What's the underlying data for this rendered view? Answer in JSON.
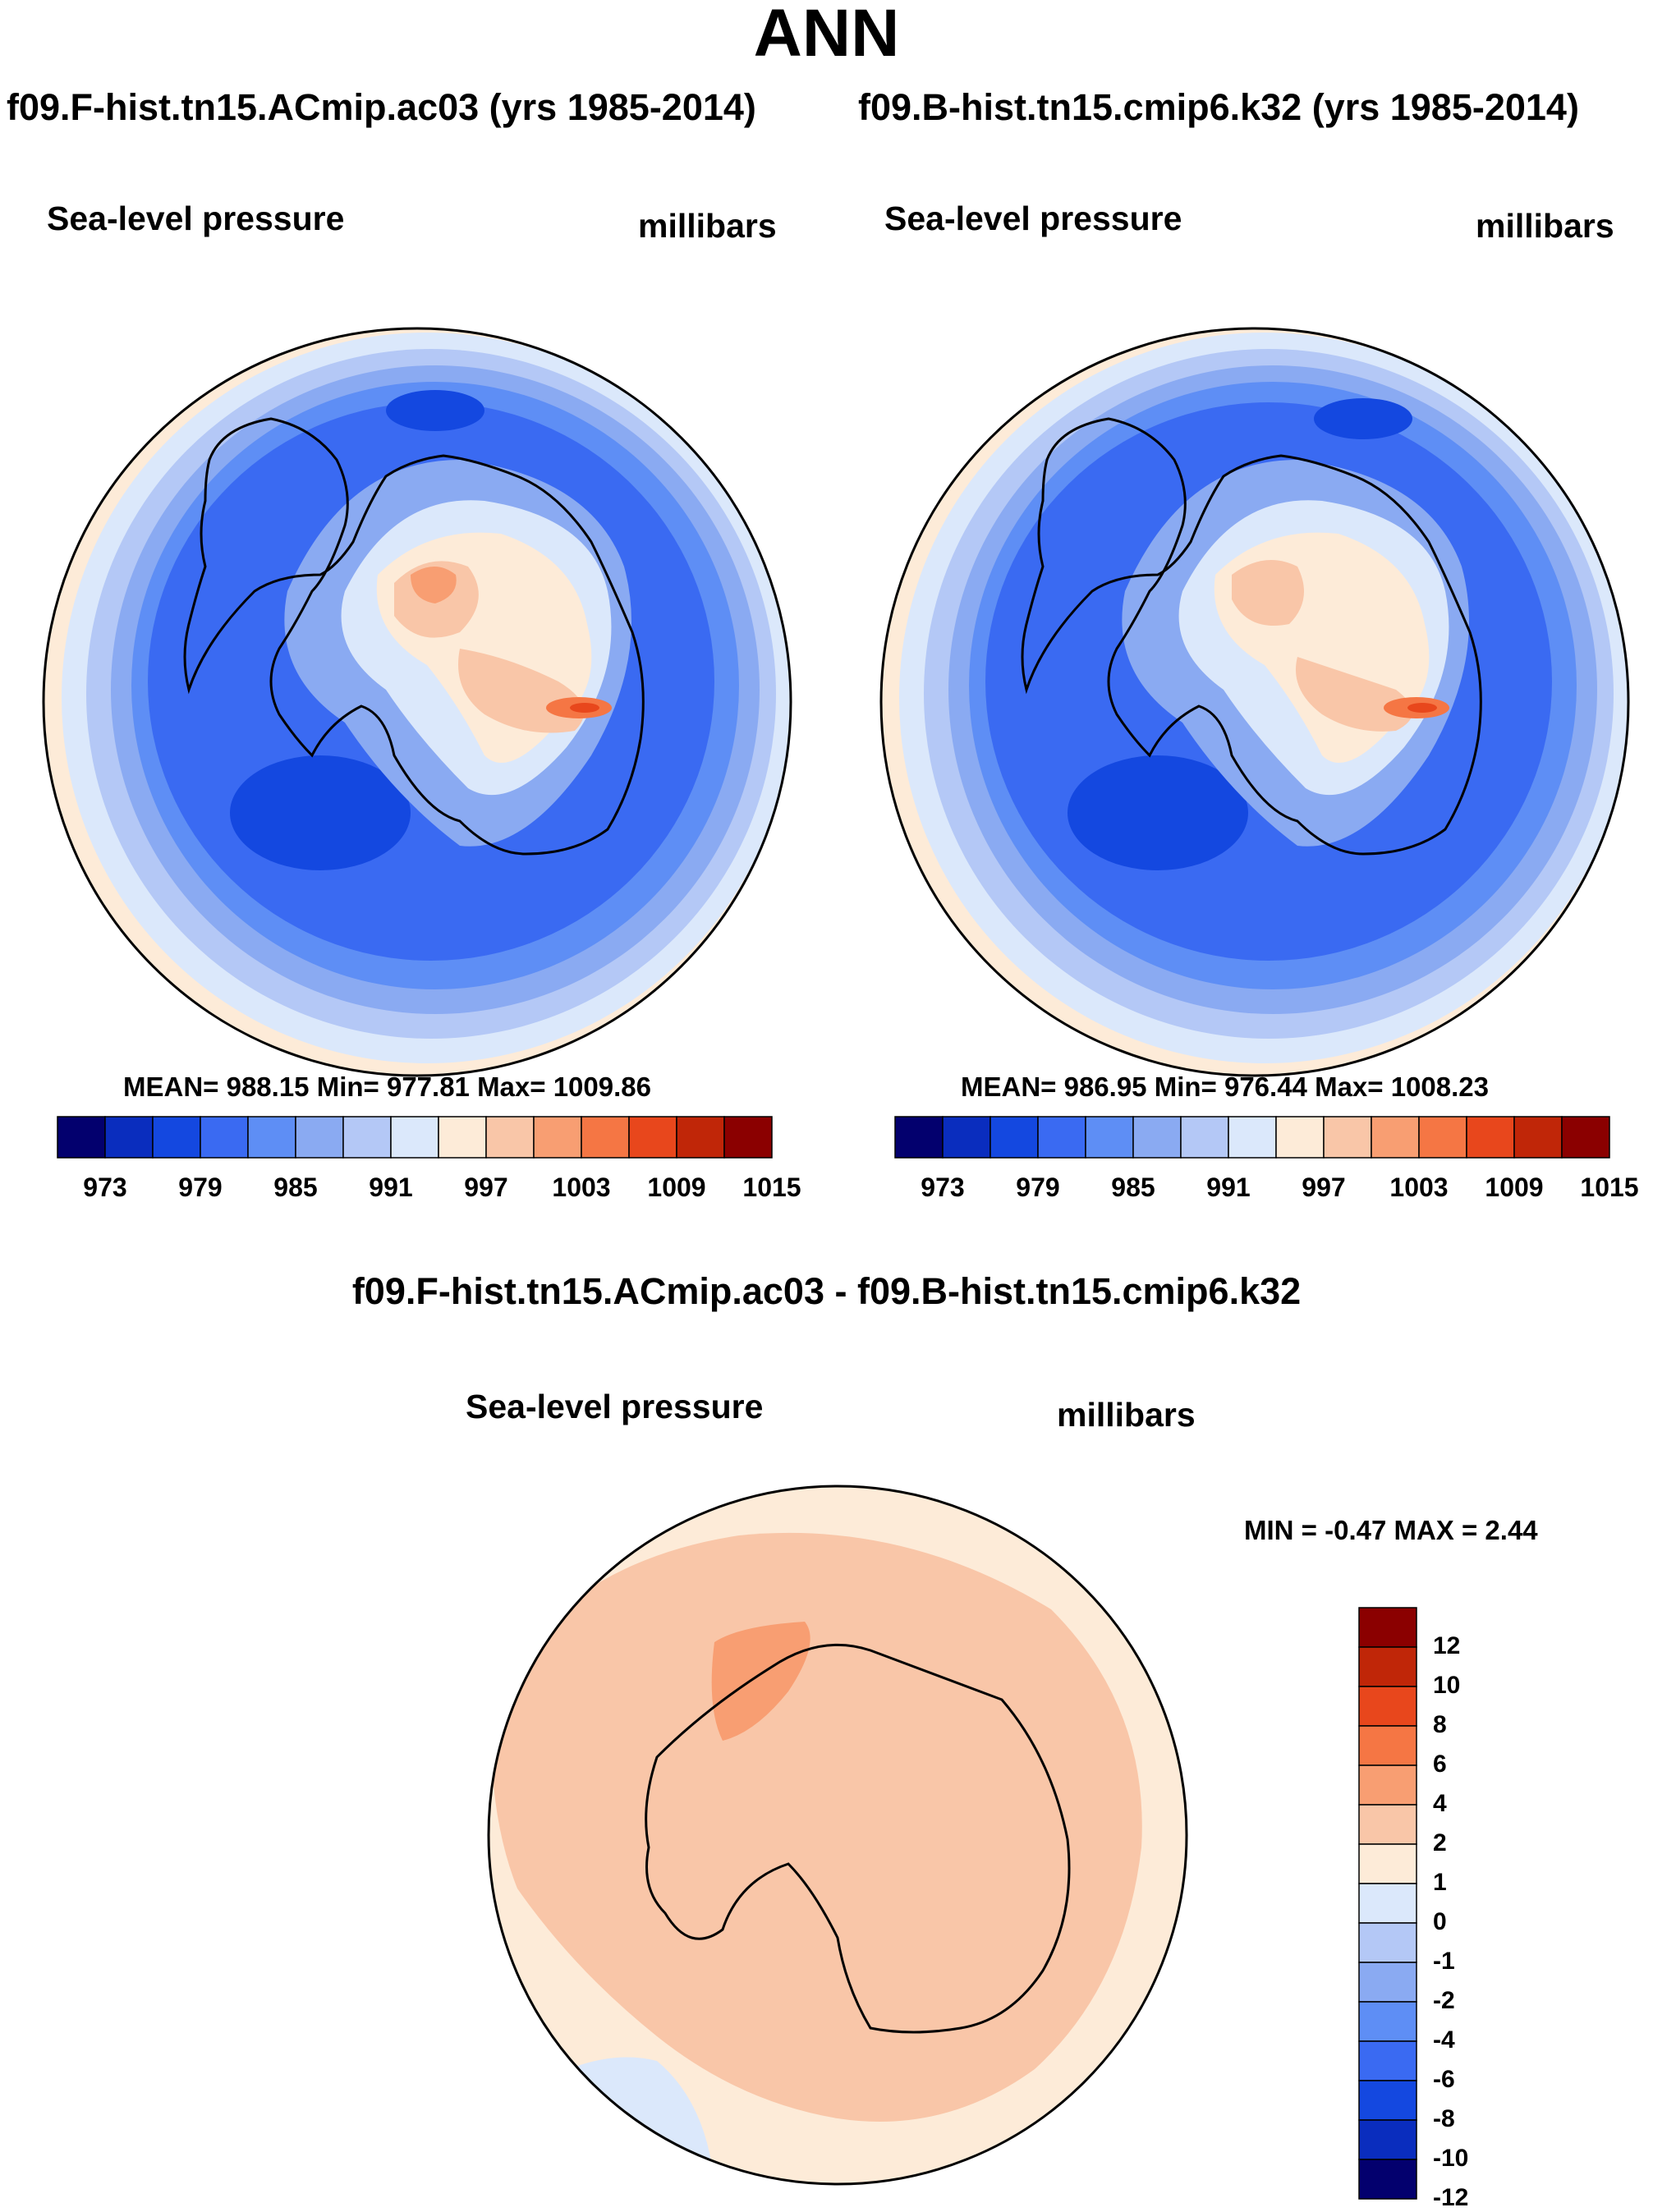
{
  "title": "ANN",
  "left_panel": {
    "case": "f09.F-hist.tn15.ACmip.ac03 (yrs 1985-2014)",
    "variable": "Sea-level pressure",
    "units": "millibars",
    "stats": "MEAN= 988.15  Min= 977.81  Max= 1009.86"
  },
  "right_panel": {
    "case": "f09.B-hist.tn15.cmip6.k32 (yrs 1985-2014)",
    "variable": "Sea-level pressure",
    "units": "millibars",
    "stats": "MEAN= 986.95  Min= 976.44  Max= 1008.23"
  },
  "diff_panel": {
    "title": "f09.F-hist.tn15.ACmip.ac03 - f09.B-hist.tn15.cmip6.k32",
    "variable": "Sea-level pressure",
    "units": "millibars",
    "minmax": "MIN =  -0.47 MAX =   2.44"
  },
  "abs_colorbar": {
    "colors": [
      "#03006e",
      "#0a2dbe",
      "#1448e0",
      "#3a6af2",
      "#5e8ef5",
      "#8aaaf2",
      "#b4c8f6",
      "#dbe8fb",
      "#fdebd8",
      "#f9c6a8",
      "#f89e72",
      "#f57644",
      "#e8471c",
      "#c02608",
      "#8b0000"
    ],
    "labels": [
      "973",
      "979",
      "985",
      "991",
      "997",
      "1003",
      "1009",
      "1015"
    ]
  },
  "diff_colorbar": {
    "colors": [
      "#03006e",
      "#0a2dbe",
      "#1448e0",
      "#3a6af2",
      "#5e8ef5",
      "#8aaaf2",
      "#b4c8f6",
      "#dbe8fb",
      "#fdebd8",
      "#f9c6a8",
      "#f89e72",
      "#f57644",
      "#e8471c",
      "#c02608",
      "#8b0000"
    ],
    "labels": [
      "12",
      "10",
      "8",
      "6",
      "4",
      "2",
      "1",
      "0",
      "-1",
      "-2",
      "-4",
      "-6",
      "-8",
      "-10",
      "-12"
    ]
  }
}
